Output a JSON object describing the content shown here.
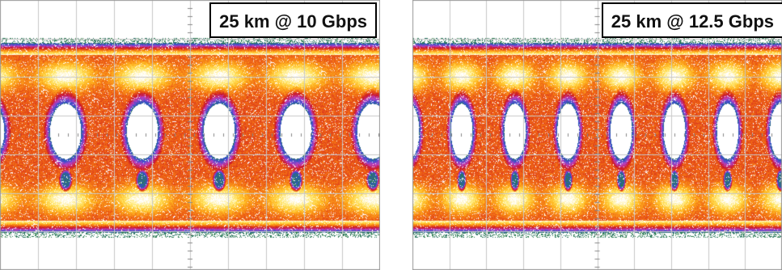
{
  "panels": [
    {
      "label": "25 km @ 10 Gbps",
      "eye_openings_visible": 5,
      "colors": {
        "background": "#ffffff",
        "grid": "#c8c8c8"
      }
    },
    {
      "label": "25 km @ 12.5 Gbps",
      "eye_openings_visible": 7,
      "colors": {
        "background": "#ffffff",
        "grid": "#c8c8c8"
      }
    }
  ],
  "density_palette": [
    "#2a8a2a",
    "#3050d0",
    "#c040c0",
    "#c81428",
    "#f06414",
    "#ffb41e",
    "#ffe664",
    "#ffffff"
  ]
}
